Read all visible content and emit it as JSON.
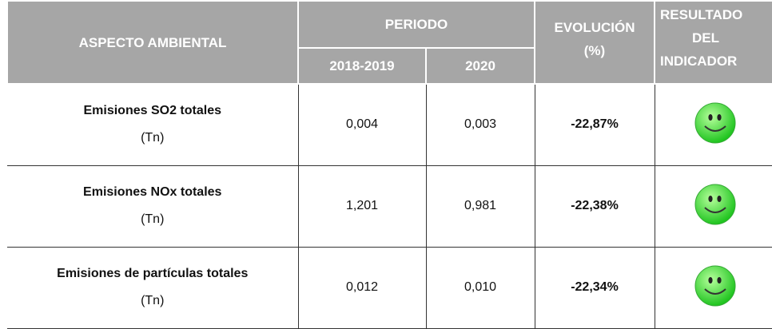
{
  "header": {
    "aspect": "ASPECTO AMBIENTAL",
    "period": "PERIODO",
    "period_cols": [
      "2018-2019",
      "2020"
    ],
    "evolution": [
      "EVOLUCIÓN",
      "(%)"
    ],
    "result": [
      "RESULTADO",
      "DEL",
      "INDICADOR"
    ]
  },
  "table": {
    "rows": [
      {
        "name": "Emisiones SO2 totales",
        "unit": "(Tn)",
        "values": [
          "0,004",
          "0,003"
        ],
        "evolution": "-22,87%"
      },
      {
        "name": "Emisiones NOx totales",
        "unit": "(Tn)",
        "values": [
          "1,201",
          "0,981"
        ],
        "evolution": "-22,38%"
      },
      {
        "name": "Emisiones de partículas totales",
        "unit": "(Tn)",
        "values": [
          "0,012",
          "0,010"
        ],
        "evolution": "-22,34%"
      }
    ]
  }
}
